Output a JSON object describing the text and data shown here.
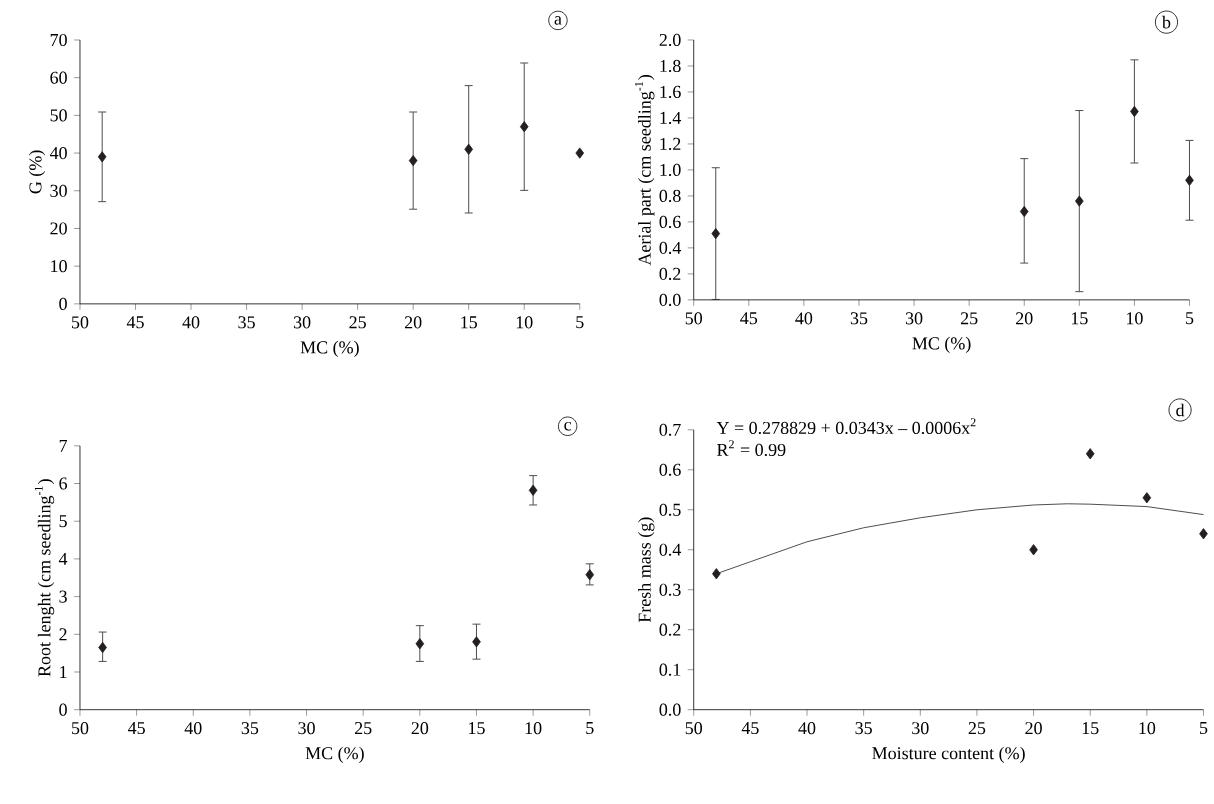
{
  "chart_data": [
    {
      "type": "scatter",
      "x": [
        48,
        20,
        15,
        10,
        5
      ],
      "xlabel": "MC (%)",
      "ylabel": "G (%)",
      "xlim": [
        50,
        5
      ],
      "xticks": [
        50,
        45,
        40,
        35,
        30,
        25,
        20,
        15,
        10,
        5
      ],
      "ylim": [
        0,
        70
      ],
      "yticks": [
        0,
        10,
        20,
        30,
        40,
        50,
        60,
        70
      ],
      "marker": "diamond",
      "annotations": [
        "a"
      ],
      "series": [
        {
          "color": "#231f20",
          "values": [
            39,
            38,
            41,
            47,
            40
          ],
          "errors": [
            [
              27,
              51
            ],
            [
              25,
              51
            ],
            [
              24,
              58
            ],
            [
              30,
              64
            ],
            null
          ]
        }
      ]
    },
    {
      "type": "scatter",
      "x": [
        48,
        20,
        15,
        10,
        5
      ],
      "xlabel": "MC (%)",
      "ylabel": "Aerial part (cm seedling$^{-1}$)",
      "xlim": [
        50,
        5
      ],
      "xticks": [
        50,
        45,
        40,
        35,
        30,
        25,
        20,
        15,
        10,
        5
      ],
      "ylim": [
        0,
        2
      ],
      "yticks": [
        {
          "value": 0,
          "label": "0.0"
        },
        0.2,
        0.4,
        0.6,
        0.8,
        {
          "value": 1,
          "label": "1.0"
        },
        1.2,
        1.4,
        1.6,
        1.8,
        {
          "value": 2,
          "label": "2.0"
        }
      ],
      "marker": "diamond",
      "annotations": [
        "b"
      ],
      "series": [
        {
          "color": "#231f20",
          "values": [
            0.51,
            0.68,
            0.76,
            1.45,
            0.92
          ],
          "errors": [
            [
              0,
              1.02
            ],
            [
              0.28,
              1.09
            ],
            [
              0.06,
              1.46
            ],
            [
              1.05,
              1.85
            ],
            [
              0.61,
              1.23
            ]
          ]
        }
      ]
    },
    {
      "type": "scatter",
      "x": [
        48,
        20,
        15,
        10,
        5
      ],
      "xlabel": "MC (%)",
      "ylabel": "Root lenght (cm seedling$^{-1}$)",
      "xlim": [
        50,
        5
      ],
      "xticks": [
        50,
        45,
        40,
        35,
        30,
        25,
        20,
        15,
        10,
        5
      ],
      "ylim": [
        0,
        7
      ],
      "yticks": [
        0,
        1,
        2,
        3,
        4,
        5,
        6,
        7
      ],
      "marker": "diamond",
      "annotations": [
        "c"
      ],
      "series": [
        {
          "color": "#231f20",
          "values": [
            1.65,
            1.75,
            1.8,
            5.82,
            3.58
          ],
          "errors": [
            [
              1.27,
              2.07
            ],
            [
              1.27,
              2.24
            ],
            [
              1.33,
              2.28
            ],
            [
              5.42,
              6.22
            ],
            [
              3.3,
              3.88
            ]
          ]
        }
      ]
    },
    {
      "type": "scatter",
      "x": [
        48,
        20,
        15,
        10,
        5
      ],
      "xlabel": "Moisture content (%)",
      "ylabel": "Fresh mass (g)",
      "xlim": [
        50,
        5
      ],
      "xticks": [
        50,
        45,
        40,
        35,
        30,
        25,
        20,
        15,
        10,
        5
      ],
      "ylim": [
        0,
        0.7
      ],
      "yticks": [
        {
          "value": 0,
          "label": "0.0"
        },
        0.1,
        0.2,
        0.3,
        0.4,
        0.5,
        0.6,
        0.7
      ],
      "marker": "diamond",
      "annotations": [
        "Y = 0.278829 + 0.0343x – 0.0006x$^{2}$",
        "R$^{2}$ = 0.99",
        "d"
      ],
      "series": [
        {
          "color": "#231f20",
          "values": [
            0.34,
            0.4,
            0.64,
            0.53,
            0.44
          ]
        },
        {
          "type": "line",
          "marker": "none",
          "color": "#231f20",
          "x": [
            48,
            45,
            40,
            35,
            30,
            25,
            20,
            17,
            15,
            10,
            5
          ],
          "values": [
            0.34,
            0.37,
            0.42,
            0.455,
            0.48,
            0.5,
            0.512,
            0.515,
            0.514,
            0.508,
            0.488
          ]
        }
      ]
    }
  ]
}
